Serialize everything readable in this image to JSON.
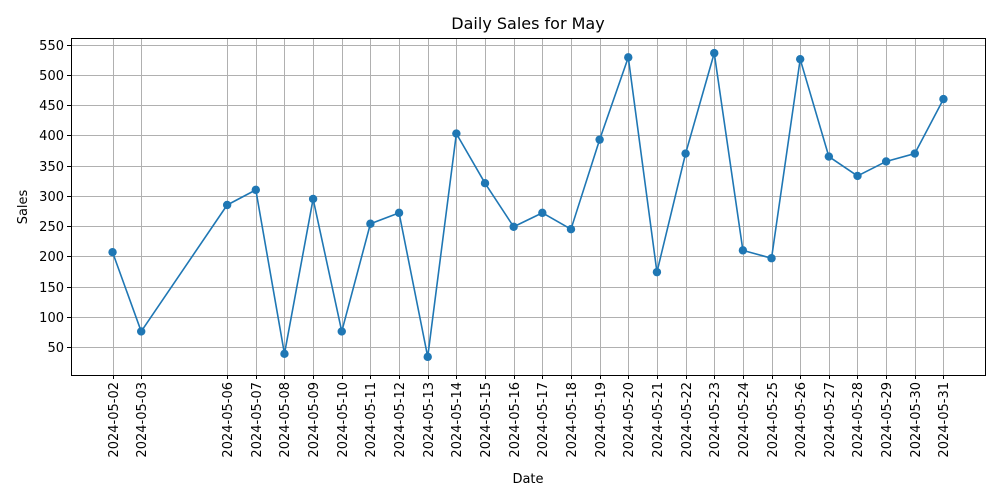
{
  "chart_data": {
    "type": "line",
    "title": "Daily Sales for May",
    "xlabel": "Date",
    "ylabel": "Sales",
    "grid": true,
    "marker": "circle",
    "color": "#1f77b4",
    "ylim": [
      4,
      561
    ],
    "yticks": [
      50,
      100,
      150,
      200,
      250,
      300,
      350,
      400,
      450,
      500,
      550
    ],
    "x": [
      "2024-05-02",
      "2024-05-03",
      "2024-05-06",
      "2024-05-07",
      "2024-05-08",
      "2024-05-09",
      "2024-05-10",
      "2024-05-11",
      "2024-05-12",
      "2024-05-13",
      "2024-05-14",
      "2024-05-15",
      "2024-05-16",
      "2024-05-17",
      "2024-05-18",
      "2024-05-19",
      "2024-05-20",
      "2024-05-21",
      "2024-05-22",
      "2024-05-23",
      "2024-05-24",
      "2024-05-25",
      "2024-05-26",
      "2024-05-27",
      "2024-05-28",
      "2024-05-29",
      "2024-05-30",
      "2024-05-31"
    ],
    "series": [
      {
        "values": [
          207,
          76,
          285,
          310,
          39,
          295,
          76,
          254,
          272,
          34,
          403,
          321,
          249,
          272,
          245,
          393,
          529,
          174,
          370,
          536,
          210,
          197,
          526,
          365,
          333,
          357,
          370,
          460
        ]
      }
    ]
  }
}
